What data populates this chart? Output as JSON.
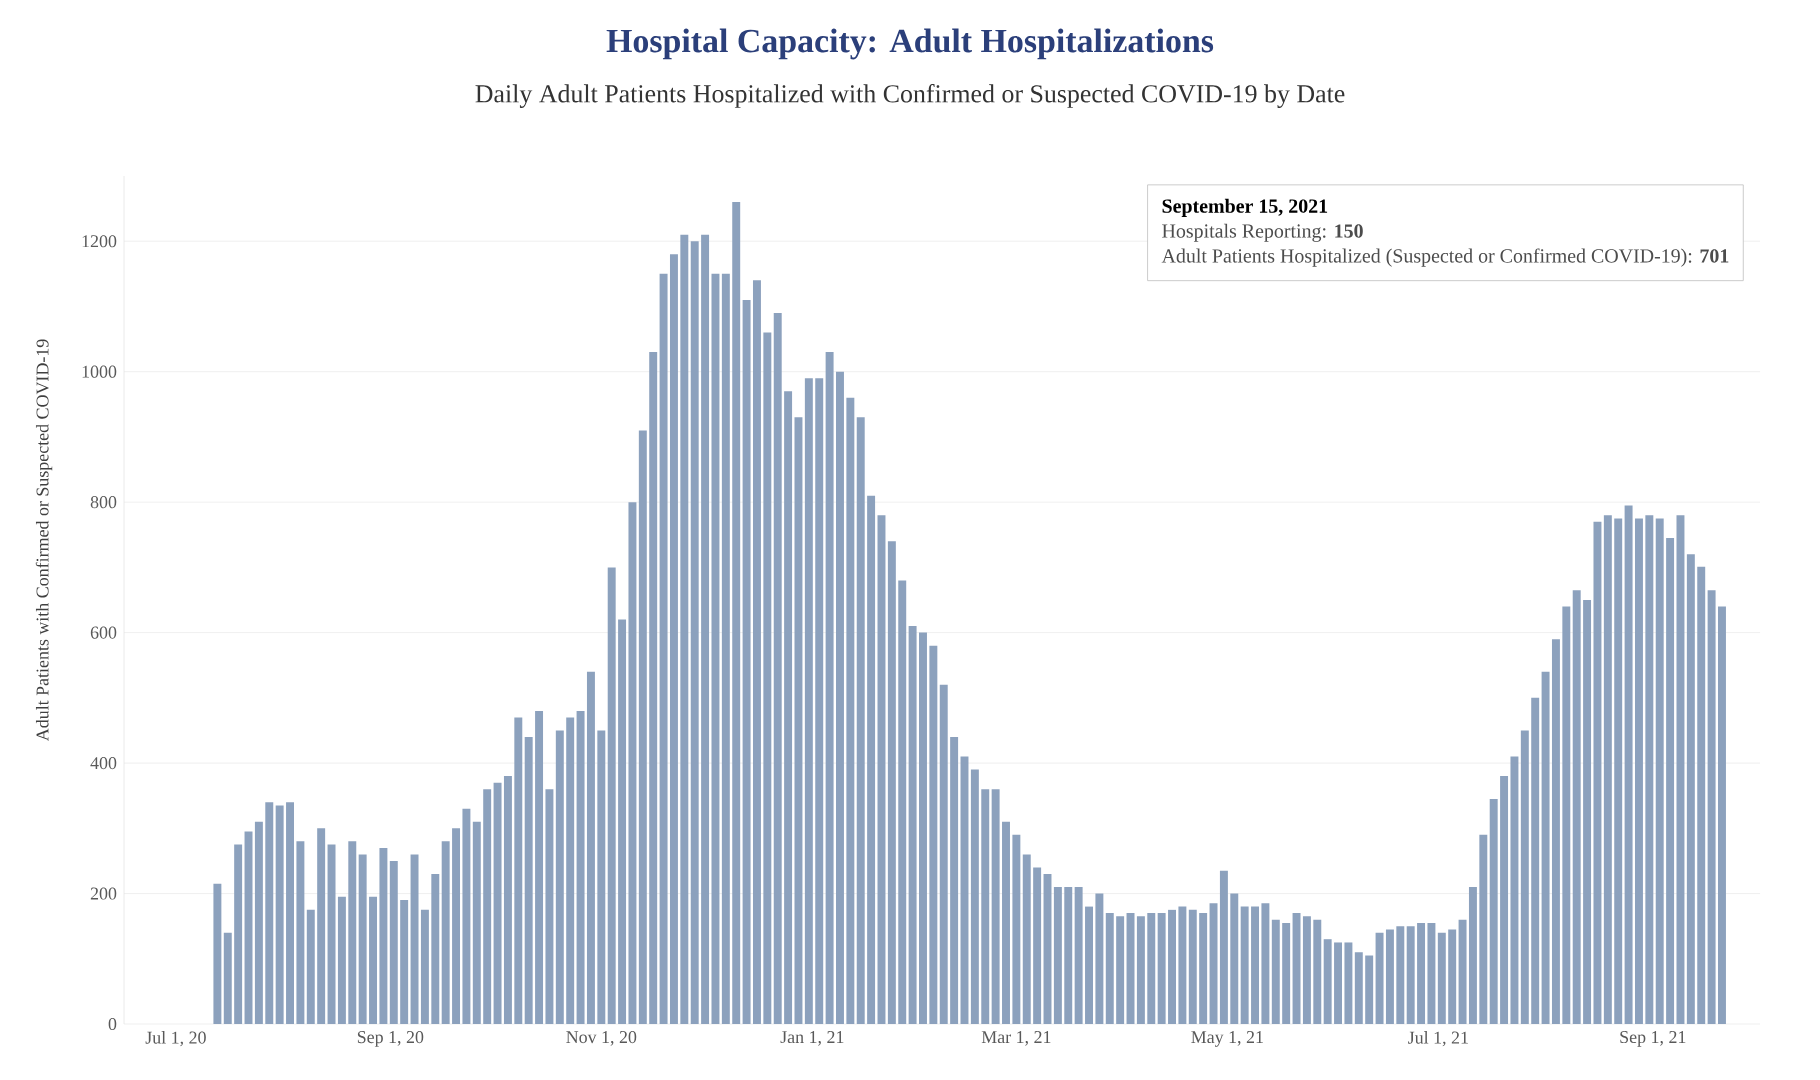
{
  "chart_data": {
    "type": "bar",
    "title": "Hospital Capacity: Adult Hospitalizations",
    "subtitle": "Daily Adult Patients Hospitalized with Confirmed or Suspected COVID-19 by Date",
    "ylabel": "Adult Patients with Confirmed or Suspected COVID-19",
    "annotations": [
      "September 15, 2021",
      "Hospitals Reporting: **150**",
      "Adult Patients Hospitalized (Suspected or Confirmed COVID-19): **701**"
    ],
    "x": [
      "2020-07-13",
      "2020-07-16",
      "2020-07-19",
      "2020-07-22",
      "2020-07-25",
      "2020-07-28",
      "2020-07-31",
      "2020-08-03",
      "2020-08-06",
      "2020-08-09",
      "2020-08-12",
      "2020-08-15",
      "2020-08-18",
      "2020-08-21",
      "2020-08-24",
      "2020-08-27",
      "2020-08-30",
      "2020-09-02",
      "2020-09-05",
      "2020-09-08",
      "2020-09-11",
      "2020-09-14",
      "2020-09-17",
      "2020-09-20",
      "2020-09-23",
      "2020-09-26",
      "2020-09-29",
      "2020-10-02",
      "2020-10-05",
      "2020-10-08",
      "2020-10-11",
      "2020-10-14",
      "2020-10-17",
      "2020-10-20",
      "2020-10-23",
      "2020-10-26",
      "2020-10-29",
      "2020-11-01",
      "2020-11-04",
      "2020-11-07",
      "2020-11-10",
      "2020-11-13",
      "2020-11-16",
      "2020-11-19",
      "2020-11-22",
      "2020-11-25",
      "2020-11-28",
      "2020-12-01",
      "2020-12-04",
      "2020-12-07",
      "2020-12-10",
      "2020-12-13",
      "2020-12-16",
      "2020-12-19",
      "2020-12-22",
      "2020-12-25",
      "2020-12-28",
      "2020-12-31",
      "2021-01-03",
      "2021-01-06",
      "2021-01-09",
      "2021-01-12",
      "2021-01-15",
      "2021-01-18",
      "2021-01-21",
      "2021-01-24",
      "2021-01-27",
      "2021-01-30",
      "2021-02-02",
      "2021-02-05",
      "2021-02-08",
      "2021-02-11",
      "2021-02-14",
      "2021-02-17",
      "2021-02-20",
      "2021-02-23",
      "2021-02-26",
      "2021-03-01",
      "2021-03-04",
      "2021-03-07",
      "2021-03-10",
      "2021-03-13",
      "2021-03-16",
      "2021-03-19",
      "2021-03-22",
      "2021-03-25",
      "2021-03-28",
      "2021-03-31",
      "2021-04-03",
      "2021-04-06",
      "2021-04-09",
      "2021-04-12",
      "2021-04-15",
      "2021-04-18",
      "2021-04-21",
      "2021-04-24",
      "2021-04-27",
      "2021-04-30",
      "2021-05-03",
      "2021-05-06",
      "2021-05-09",
      "2021-05-12",
      "2021-05-15",
      "2021-05-18",
      "2021-05-21",
      "2021-05-24",
      "2021-05-27",
      "2021-05-30",
      "2021-06-02",
      "2021-06-05",
      "2021-06-08",
      "2021-06-11",
      "2021-06-14",
      "2021-06-17",
      "2021-06-20",
      "2021-06-23",
      "2021-06-26",
      "2021-06-29",
      "2021-07-02",
      "2021-07-05",
      "2021-07-08",
      "2021-07-11",
      "2021-07-14",
      "2021-07-17",
      "2021-07-20",
      "2021-07-23",
      "2021-07-26",
      "2021-07-29",
      "2021-08-01",
      "2021-08-04",
      "2021-08-07",
      "2021-08-10",
      "2021-08-13",
      "2021-08-16",
      "2021-08-19",
      "2021-08-22",
      "2021-08-25",
      "2021-08-28",
      "2021-08-31",
      "2021-09-03",
      "2021-09-06",
      "2021-09-09",
      "2021-09-12",
      "2021-09-15",
      "2021-09-18",
      "2021-09-21"
    ],
    "values": [
      215,
      140,
      275,
      295,
      310,
      340,
      335,
      340,
      280,
      175,
      300,
      275,
      195,
      280,
      260,
      195,
      270,
      250,
      190,
      260,
      175,
      230,
      280,
      300,
      330,
      310,
      360,
      370,
      380,
      470,
      440,
      480,
      360,
      450,
      470,
      480,
      540,
      450,
      700,
      620,
      800,
      910,
      1030,
      1150,
      1180,
      1210,
      1200,
      1210,
      1150,
      1150,
      1260,
      1110,
      1140,
      1060,
      1090,
      970,
      930,
      990,
      990,
      1030,
      1000,
      960,
      930,
      810,
      780,
      740,
      680,
      610,
      600,
      580,
      520,
      440,
      410,
      390,
      360,
      360,
      310,
      290,
      260,
      240,
      230,
      210,
      210,
      210,
      180,
      200,
      170,
      165,
      170,
      165,
      170,
      170,
      175,
      180,
      175,
      170,
      185,
      235,
      200,
      180,
      180,
      185,
      160,
      155,
      170,
      165,
      160,
      130,
      125,
      125,
      110,
      105,
      140,
      145,
      150,
      150,
      155,
      155,
      140,
      145,
      160,
      210,
      290,
      345,
      380,
      410,
      450,
      500,
      540,
      590,
      640,
      665,
      650,
      770,
      780,
      775,
      795,
      775,
      780,
      775,
      745,
      780,
      720,
      701,
      665,
      640
    ],
    "color": "#8ca1bd",
    "xlim": [
      "2020-06-16",
      "2021-10-02"
    ],
    "xticks": [
      {
        "value": "2020-07-01",
        "label": "Jul 1, 20"
      },
      {
        "value": "2020-09-01",
        "label": "Sep 1, 20"
      },
      {
        "value": "2020-11-01",
        "label": "Nov 1, 20"
      },
      {
        "value": "2021-01-01",
        "label": "Jan 1, 21"
      },
      {
        "value": "2021-03-01",
        "label": "Mar 1, 21"
      },
      {
        "value": "2021-05-01",
        "label": "May 1, 21"
      },
      {
        "value": "2021-07-01",
        "label": "Jul 1, 21"
      },
      {
        "value": "2021-09-01",
        "label": "Sep 1, 21"
      }
    ],
    "ylim": [
      0,
      1300
    ],
    "yticks": [
      0,
      200,
      400,
      600,
      800,
      1000,
      1200
    ],
    "grid": "y"
  }
}
